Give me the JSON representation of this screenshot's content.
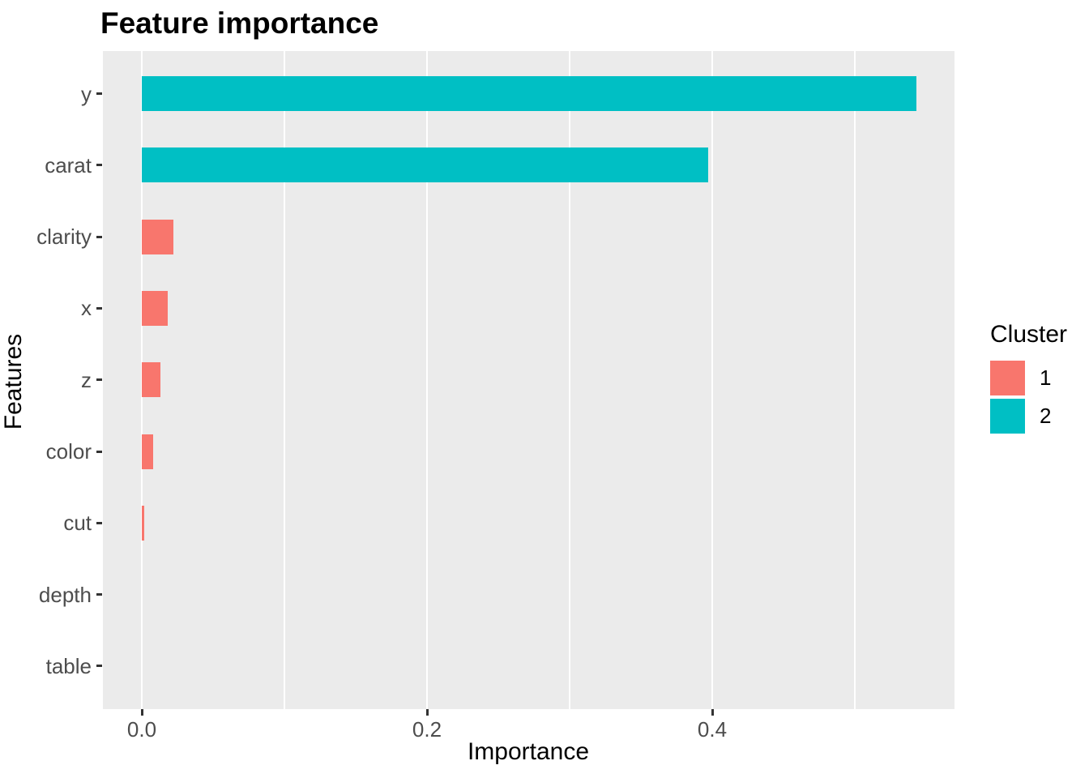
{
  "title": "Feature importance",
  "chart_data": {
    "type": "bar",
    "orientation": "horizontal",
    "title": "Feature importance",
    "xlabel": "Importance",
    "ylabel": "Features",
    "categories": [
      "y",
      "carat",
      "clarity",
      "x",
      "z",
      "color",
      "cut",
      "depth",
      "table"
    ],
    "values": [
      0.543,
      0.397,
      0.022,
      0.018,
      0.013,
      0.008,
      0.0015,
      0,
      0
    ],
    "clusters": [
      2,
      2,
      1,
      1,
      1,
      1,
      1,
      1,
      1
    ],
    "x_ticks": [
      0.0,
      0.2,
      0.4
    ],
    "x_tick_labels": [
      "0.0",
      "0.2",
      "0.4"
    ],
    "x_minor_ticks": [
      0.1,
      0.3,
      0.5
    ],
    "xlim": [
      0,
      0.57
    ],
    "grid": true,
    "panel_background": "#EBEBEB",
    "gridline_color": "#FFFFFF",
    "legend": {
      "title": "Cluster",
      "position": "right",
      "entries": [
        {
          "label": "1",
          "color": "#F8766D"
        },
        {
          "label": "2",
          "color": "#00BFC4"
        }
      ]
    }
  },
  "colors": {
    "cluster_1": "#F8766D",
    "cluster_2": "#00BFC4",
    "panel_bg": "#EBEBEB",
    "grid": "#FFFFFF",
    "axis_text": "#4D4D4D",
    "tick_mark": "#333333",
    "title_text": "#000000"
  }
}
